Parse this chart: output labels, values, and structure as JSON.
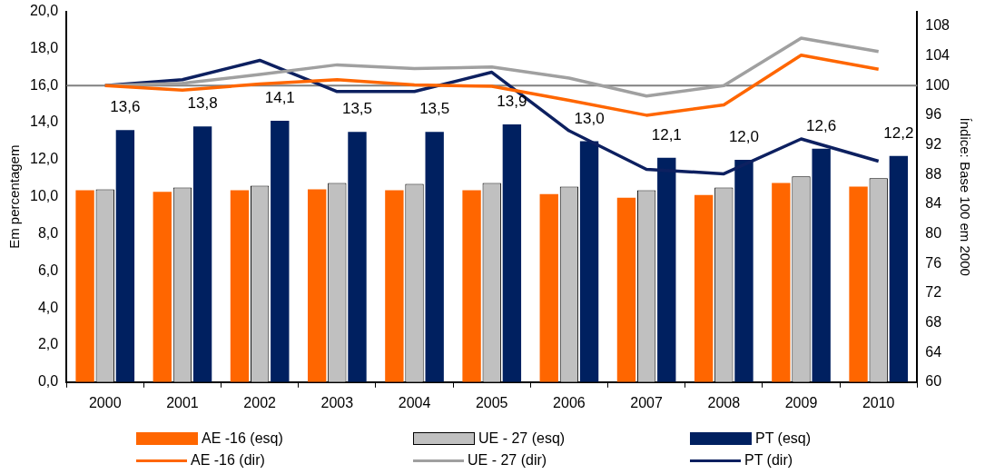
{
  "chart_data": {
    "type": "bar",
    "ylabel": "Em percentagem",
    "y2label": "Índice: Base 100 em 2000",
    "categories": [
      "2000",
      "2001",
      "2002",
      "2003",
      "2004",
      "2005",
      "2006",
      "2007",
      "2008",
      "2009",
      "2010"
    ],
    "series": [
      {
        "name": "AE -16 (esq)",
        "type": "bar",
        "color": "#ff6600",
        "values": [
          10.35,
          10.27,
          10.35,
          10.4,
          10.35,
          10.35,
          10.15,
          9.95,
          10.1,
          10.75,
          10.55
        ]
      },
      {
        "name": "UE - 27 (esq)",
        "type": "bar",
        "color": "#c0c0c0",
        "values": [
          10.4,
          10.5,
          10.6,
          10.75,
          10.7,
          10.75,
          10.55,
          10.35,
          10.5,
          11.1,
          11.0
        ]
      },
      {
        "name": "PT (esq)",
        "type": "bar",
        "color": "#002060",
        "values": [
          13.6,
          13.8,
          14.1,
          13.5,
          13.5,
          13.9,
          13.0,
          12.1,
          12.0,
          12.6,
          12.2
        ],
        "value_labels": [
          "13,6",
          "13,8",
          "14,1",
          "13,5",
          "13,5",
          "13,9",
          "13,0",
          "12,1",
          "12,0",
          "12,6",
          "12,2"
        ]
      },
      {
        "name": "AE -16 (dir)",
        "type": "line",
        "axis": "y2",
        "color": "#ff6600",
        "values": [
          100,
          99.4,
          100.2,
          100.8,
          100.1,
          99.9,
          98.0,
          96.0,
          97.4,
          104.1,
          102.2
        ]
      },
      {
        "name": "UE - 27 (dir)",
        "type": "line",
        "axis": "y2",
        "color": "#a0a0a0",
        "values": [
          100,
          100.3,
          101.5,
          102.8,
          102.3,
          102.5,
          101.0,
          98.6,
          100.0,
          106.4,
          104.6
        ]
      },
      {
        "name": "PT (dir)",
        "type": "line",
        "axis": "y2",
        "color": "#0d2060",
        "values": [
          100,
          100.8,
          103.4,
          99.2,
          99.2,
          101.8,
          93.9,
          88.7,
          88.1,
          92.8,
          89.8
        ]
      }
    ],
    "ylim": [
      0,
      20
    ],
    "yticks": [
      {
        "value": 0,
        "label": "0,0"
      },
      {
        "value": 2,
        "label": "2,0"
      },
      {
        "value": 4,
        "label": "4,0"
      },
      {
        "value": 6,
        "label": "6,0"
      },
      {
        "value": 8,
        "label": "8,0"
      },
      {
        "value": 10,
        "label": "10,0"
      },
      {
        "value": 12,
        "label": "12,0"
      },
      {
        "value": 14,
        "label": "14,0"
      },
      {
        "value": 16,
        "label": "16,0"
      },
      {
        "value": 18,
        "label": "18,0"
      },
      {
        "value": 20,
        "label": "20,0"
      }
    ],
    "y2lim": [
      60,
      110
    ],
    "y2ticks": [
      60,
      64,
      68,
      72,
      76,
      80,
      84,
      88,
      92,
      96,
      100,
      104,
      108
    ],
    "ref_lines": [
      {
        "axis": "y2",
        "value": 100,
        "color": "#808080"
      }
    ],
    "grid": false,
    "legend": "bottom",
    "marker": "none",
    "line_style": "solid"
  }
}
